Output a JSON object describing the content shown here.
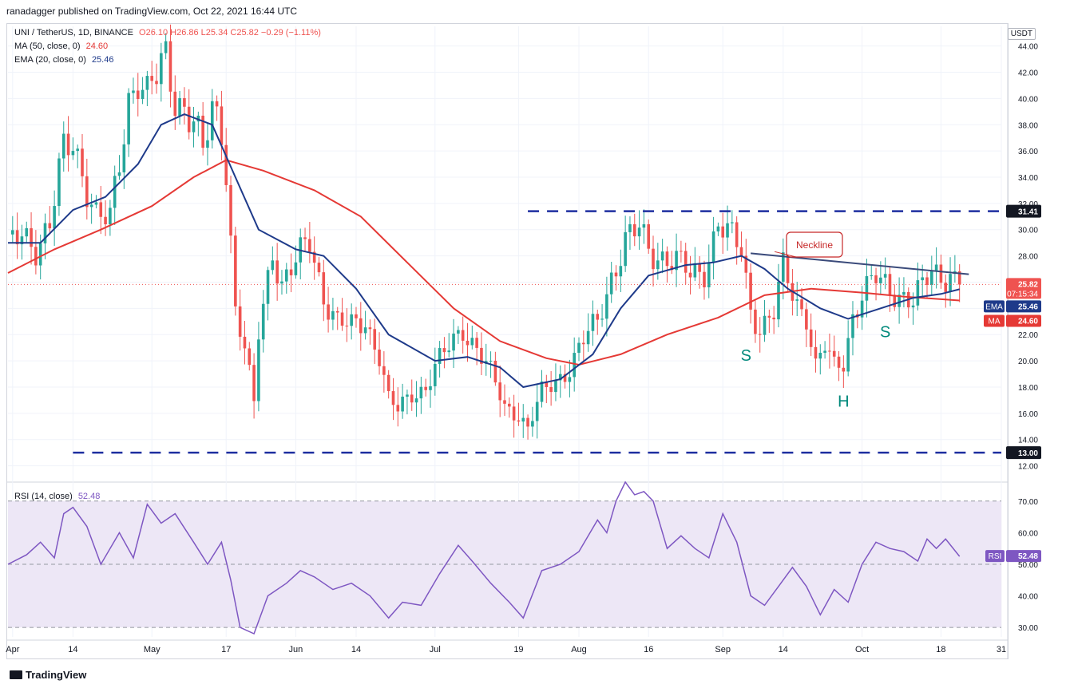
{
  "header": {
    "publisher": "ranadagger published on TradingView.com, Oct 22, 2021 16:44 UTC"
  },
  "legend": {
    "symbol": "UNI / TetherUS, 1D, BINANCE",
    "ohlc": "O26.10  H26.86  L25.34  C25.82  −0.29 (−1.11%)",
    "ma_label": "MA (50, close, 0)",
    "ma_value": "24.60",
    "ema_label": "EMA (20, close, 0)",
    "ema_value": "25.46",
    "rsi_label": "RSI (14, close)",
    "rsi_value": "52.48"
  },
  "currency": "USDT",
  "brand": "TradingView",
  "colors": {
    "up": "#26a69a",
    "down": "#ef5350",
    "ema": "#1e3a8a",
    "ma": "#e53935",
    "rsi": "#7e57c2",
    "rsi_band": "#ede7f6",
    "levels": "#1e2fa0",
    "neckline": "#3a4a7a",
    "annotation_text": "#00897b"
  },
  "chart_data": {
    "type": "candlestick",
    "price_axis": {
      "ylim": [
        11.0,
        45.5
      ],
      "ticks": [
        "12.00",
        "14.00",
        "16.00",
        "18.00",
        "20.00",
        "22.00",
        "24.00",
        "26.00",
        "28.00",
        "30.00",
        "32.00",
        "34.00",
        "36.00",
        "38.00",
        "40.00",
        "42.00",
        "44.00"
      ]
    },
    "time_axis": {
      "start": "2021-03-31",
      "end": "2021-10-31",
      "labels": [
        {
          "date": "2021-04-01",
          "text": "Apr"
        },
        {
          "date": "2021-04-14",
          "text": "14"
        },
        {
          "date": "2021-05-01",
          "text": "May"
        },
        {
          "date": "2021-05-17",
          "text": "17"
        },
        {
          "date": "2021-06-01",
          "text": "Jun"
        },
        {
          "date": "2021-06-14",
          "text": "14"
        },
        {
          "date": "2021-07-01",
          "text": "Jul"
        },
        {
          "date": "2021-07-19",
          "text": "19"
        },
        {
          "date": "2021-08-01",
          "text": "Aug"
        },
        {
          "date": "2021-08-16",
          "text": "16"
        },
        {
          "date": "2021-09-01",
          "text": "Sep"
        },
        {
          "date": "2021-09-14",
          "text": "14"
        },
        {
          "date": "2021-10-01",
          "text": "Oct"
        },
        {
          "date": "2021-10-18",
          "text": "18"
        },
        {
          "date": "2021-10-31",
          "text": "31"
        }
      ]
    },
    "close_path": [
      {
        "date": "2021-03-31",
        "value": 28.5
      },
      {
        "date": "2021-04-03",
        "value": 29.5
      },
      {
        "date": "2021-04-06",
        "value": 28.8
      },
      {
        "date": "2021-04-09",
        "value": 30.5
      },
      {
        "date": "2021-04-12",
        "value": 35.8
      },
      {
        "date": "2021-04-14",
        "value": 36.5
      },
      {
        "date": "2021-04-17",
        "value": 33.5
      },
      {
        "date": "2021-04-19",
        "value": 31.2
      },
      {
        "date": "2021-04-22",
        "value": 30.5
      },
      {
        "date": "2021-04-24",
        "value": 35.0
      },
      {
        "date": "2021-04-26",
        "value": 40.0
      },
      {
        "date": "2021-04-28",
        "value": 42.0
      },
      {
        "date": "2021-04-30",
        "value": 40.2
      },
      {
        "date": "2021-05-02",
        "value": 41.5
      },
      {
        "date": "2021-05-04",
        "value": 42.8
      },
      {
        "date": "2021-05-06",
        "value": 40.2
      },
      {
        "date": "2021-05-08",
        "value": 39.5
      },
      {
        "date": "2021-05-10",
        "value": 38.5
      },
      {
        "date": "2021-05-12",
        "value": 35.5
      },
      {
        "date": "2021-05-14",
        "value": 39.0
      },
      {
        "date": "2021-05-16",
        "value": 37.5
      },
      {
        "date": "2021-05-17",
        "value": 35.0
      },
      {
        "date": "2021-05-19",
        "value": 24.0
      },
      {
        "date": "2021-05-21",
        "value": 21.0
      },
      {
        "date": "2021-05-23",
        "value": 16.5
      },
      {
        "date": "2021-05-24",
        "value": 22.0
      },
      {
        "date": "2021-05-27",
        "value": 28.5
      },
      {
        "date": "2021-05-29",
        "value": 26.0
      },
      {
        "date": "2021-06-01",
        "value": 27.5
      },
      {
        "date": "2021-06-04",
        "value": 29.0
      },
      {
        "date": "2021-06-07",
        "value": 25.0
      },
      {
        "date": "2021-06-10",
        "value": 23.0
      },
      {
        "date": "2021-06-13",
        "value": 22.5
      },
      {
        "date": "2021-06-16",
        "value": 23.0
      },
      {
        "date": "2021-06-19",
        "value": 20.5
      },
      {
        "date": "2021-06-21",
        "value": 17.0
      },
      {
        "date": "2021-06-23",
        "value": 16.2
      },
      {
        "date": "2021-06-26",
        "value": 17.5
      },
      {
        "date": "2021-06-29",
        "value": 18.0
      },
      {
        "date": "2021-07-01",
        "value": 19.5
      },
      {
        "date": "2021-07-04",
        "value": 21.0
      },
      {
        "date": "2021-07-07",
        "value": 22.5
      },
      {
        "date": "2021-07-10",
        "value": 21.0
      },
      {
        "date": "2021-07-13",
        "value": 19.0
      },
      {
        "date": "2021-07-16",
        "value": 16.5
      },
      {
        "date": "2021-07-19",
        "value": 16.0
      },
      {
        "date": "2021-07-21",
        "value": 14.8
      },
      {
        "date": "2021-07-24",
        "value": 17.5
      },
      {
        "date": "2021-07-27",
        "value": 18.5
      },
      {
        "date": "2021-07-30",
        "value": 19.5
      },
      {
        "date": "2021-08-02",
        "value": 21.5
      },
      {
        "date": "2021-08-05",
        "value": 23.0
      },
      {
        "date": "2021-08-08",
        "value": 26.5
      },
      {
        "date": "2021-08-11",
        "value": 29.0
      },
      {
        "date": "2021-08-14",
        "value": 30.0
      },
      {
        "date": "2021-08-16",
        "value": 28.5
      },
      {
        "date": "2021-08-19",
        "value": 28.0
      },
      {
        "date": "2021-08-22",
        "value": 27.5
      },
      {
        "date": "2021-08-25",
        "value": 26.5
      },
      {
        "date": "2021-08-28",
        "value": 27.0
      },
      {
        "date": "2021-08-31",
        "value": 30.5
      },
      {
        "date": "2021-09-02",
        "value": 29.5
      },
      {
        "date": "2021-09-05",
        "value": 28.5
      },
      {
        "date": "2021-09-07",
        "value": 24.0
      },
      {
        "date": "2021-09-09",
        "value": 22.5
      },
      {
        "date": "2021-09-12",
        "value": 23.5
      },
      {
        "date": "2021-09-14",
        "value": 27.0
      },
      {
        "date": "2021-09-17",
        "value": 24.5
      },
      {
        "date": "2021-09-19",
        "value": 23.5
      },
      {
        "date": "2021-09-21",
        "value": 19.5
      },
      {
        "date": "2021-09-23",
        "value": 21.0
      },
      {
        "date": "2021-09-25",
        "value": 19.5
      },
      {
        "date": "2021-09-27",
        "value": 20.0
      },
      {
        "date": "2021-09-29",
        "value": 23.5
      },
      {
        "date": "2021-10-01",
        "value": 25.0
      },
      {
        "date": "2021-10-04",
        "value": 26.2
      },
      {
        "date": "2021-10-07",
        "value": 25.5
      },
      {
        "date": "2021-10-10",
        "value": 25.0
      },
      {
        "date": "2021-10-12",
        "value": 24.5
      },
      {
        "date": "2021-10-14",
        "value": 25.5
      },
      {
        "date": "2021-10-16",
        "value": 26.8
      },
      {
        "date": "2021-10-18",
        "value": 26.5
      },
      {
        "date": "2021-10-20",
        "value": 26.8
      },
      {
        "date": "2021-10-22",
        "value": 25.82
      }
    ],
    "ema_path": [
      {
        "date": "2021-03-31",
        "value": 29.0
      },
      {
        "date": "2021-04-07",
        "value": 29.0
      },
      {
        "date": "2021-04-14",
        "value": 31.5
      },
      {
        "date": "2021-04-21",
        "value": 32.5
      },
      {
        "date": "2021-04-28",
        "value": 35.0
      },
      {
        "date": "2021-05-03",
        "value": 38.0
      },
      {
        "date": "2021-05-08",
        "value": 38.8
      },
      {
        "date": "2021-05-14",
        "value": 38.0
      },
      {
        "date": "2021-05-19",
        "value": 34.0
      },
      {
        "date": "2021-05-24",
        "value": 30.0
      },
      {
        "date": "2021-06-01",
        "value": 28.5
      },
      {
        "date": "2021-06-07",
        "value": 28.0
      },
      {
        "date": "2021-06-14",
        "value": 25.5
      },
      {
        "date": "2021-06-21",
        "value": 22.0
      },
      {
        "date": "2021-07-01",
        "value": 20.0
      },
      {
        "date": "2021-07-08",
        "value": 20.3
      },
      {
        "date": "2021-07-15",
        "value": 19.5
      },
      {
        "date": "2021-07-20",
        "value": 18.0
      },
      {
        "date": "2021-07-28",
        "value": 18.6
      },
      {
        "date": "2021-08-04",
        "value": 20.5
      },
      {
        "date": "2021-08-10",
        "value": 24.0
      },
      {
        "date": "2021-08-16",
        "value": 26.5
      },
      {
        "date": "2021-08-24",
        "value": 27.3
      },
      {
        "date": "2021-08-30",
        "value": 27.5
      },
      {
        "date": "2021-09-05",
        "value": 28.0
      },
      {
        "date": "2021-09-10",
        "value": 27.0
      },
      {
        "date": "2021-09-15",
        "value": 25.5
      },
      {
        "date": "2021-09-22",
        "value": 24.0
      },
      {
        "date": "2021-09-28",
        "value": 23.2
      },
      {
        "date": "2021-10-05",
        "value": 24.0
      },
      {
        "date": "2021-10-12",
        "value": 24.8
      },
      {
        "date": "2021-10-18",
        "value": 25.1
      },
      {
        "date": "2021-10-22",
        "value": 25.46
      }
    ],
    "ma_path": [
      {
        "date": "2021-03-31",
        "value": 26.7
      },
      {
        "date": "2021-04-10",
        "value": 28.5
      },
      {
        "date": "2021-04-20",
        "value": 30.0
      },
      {
        "date": "2021-05-01",
        "value": 31.8
      },
      {
        "date": "2021-05-10",
        "value": 34.0
      },
      {
        "date": "2021-05-17",
        "value": 35.3
      },
      {
        "date": "2021-05-25",
        "value": 34.5
      },
      {
        "date": "2021-06-05",
        "value": 33.0
      },
      {
        "date": "2021-06-15",
        "value": 31.0
      },
      {
        "date": "2021-06-25",
        "value": 27.5
      },
      {
        "date": "2021-07-05",
        "value": 24.0
      },
      {
        "date": "2021-07-15",
        "value": 21.5
      },
      {
        "date": "2021-07-25",
        "value": 20.2
      },
      {
        "date": "2021-08-01",
        "value": 19.7
      },
      {
        "date": "2021-08-10",
        "value": 20.5
      },
      {
        "date": "2021-08-20",
        "value": 22.0
      },
      {
        "date": "2021-08-31",
        "value": 23.3
      },
      {
        "date": "2021-09-10",
        "value": 25.0
      },
      {
        "date": "2021-09-20",
        "value": 25.5
      },
      {
        "date": "2021-10-01",
        "value": 25.2
      },
      {
        "date": "2021-10-10",
        "value": 24.9
      },
      {
        "date": "2021-10-22",
        "value": 24.6
      }
    ],
    "rsi": {
      "ylim": [
        27,
        75
      ],
      "band": [
        30,
        70
      ],
      "ticks": [
        "30.00",
        "40.00",
        "50.00",
        "60.00",
        "70.00"
      ],
      "points": [
        {
          "date": "2021-03-31",
          "value": 50
        },
        {
          "date": "2021-04-04",
          "value": 53
        },
        {
          "date": "2021-04-07",
          "value": 57
        },
        {
          "date": "2021-04-10",
          "value": 52
        },
        {
          "date": "2021-04-12",
          "value": 66
        },
        {
          "date": "2021-04-14",
          "value": 68
        },
        {
          "date": "2021-04-17",
          "value": 62
        },
        {
          "date": "2021-04-20",
          "value": 50
        },
        {
          "date": "2021-04-24",
          "value": 60
        },
        {
          "date": "2021-04-27",
          "value": 52
        },
        {
          "date": "2021-04-30",
          "value": 69
        },
        {
          "date": "2021-05-03",
          "value": 63
        },
        {
          "date": "2021-05-06",
          "value": 66
        },
        {
          "date": "2021-05-10",
          "value": 57
        },
        {
          "date": "2021-05-13",
          "value": 50
        },
        {
          "date": "2021-05-16",
          "value": 57
        },
        {
          "date": "2021-05-18",
          "value": 45
        },
        {
          "date": "2021-05-20",
          "value": 30
        },
        {
          "date": "2021-05-23",
          "value": 28
        },
        {
          "date": "2021-05-26",
          "value": 40
        },
        {
          "date": "2021-05-30",
          "value": 44
        },
        {
          "date": "2021-06-02",
          "value": 48
        },
        {
          "date": "2021-06-05",
          "value": 46
        },
        {
          "date": "2021-06-09",
          "value": 42
        },
        {
          "date": "2021-06-13",
          "value": 44
        },
        {
          "date": "2021-06-17",
          "value": 40
        },
        {
          "date": "2021-06-21",
          "value": 33
        },
        {
          "date": "2021-06-24",
          "value": 38
        },
        {
          "date": "2021-06-28",
          "value": 37
        },
        {
          "date": "2021-07-02",
          "value": 47
        },
        {
          "date": "2021-07-06",
          "value": 56
        },
        {
          "date": "2021-07-09",
          "value": 51
        },
        {
          "date": "2021-07-13",
          "value": 44
        },
        {
          "date": "2021-07-17",
          "value": 38
        },
        {
          "date": "2021-07-20",
          "value": 33
        },
        {
          "date": "2021-07-24",
          "value": 48
        },
        {
          "date": "2021-07-28",
          "value": 50
        },
        {
          "date": "2021-08-01",
          "value": 54
        },
        {
          "date": "2021-08-05",
          "value": 64
        },
        {
          "date": "2021-08-07",
          "value": 60
        },
        {
          "date": "2021-08-09",
          "value": 70
        },
        {
          "date": "2021-08-11",
          "value": 76
        },
        {
          "date": "2021-08-13",
          "value": 72
        },
        {
          "date": "2021-08-15",
          "value": 73
        },
        {
          "date": "2021-08-17",
          "value": 70
        },
        {
          "date": "2021-08-20",
          "value": 55
        },
        {
          "date": "2021-08-23",
          "value": 59
        },
        {
          "date": "2021-08-26",
          "value": 55
        },
        {
          "date": "2021-08-29",
          "value": 52
        },
        {
          "date": "2021-09-01",
          "value": 66
        },
        {
          "date": "2021-09-04",
          "value": 57
        },
        {
          "date": "2021-09-07",
          "value": 40
        },
        {
          "date": "2021-09-10",
          "value": 37
        },
        {
          "date": "2021-09-13",
          "value": 43
        },
        {
          "date": "2021-09-16",
          "value": 49
        },
        {
          "date": "2021-09-19",
          "value": 43
        },
        {
          "date": "2021-09-22",
          "value": 34
        },
        {
          "date": "2021-09-25",
          "value": 42
        },
        {
          "date": "2021-09-28",
          "value": 38
        },
        {
          "date": "2021-10-01",
          "value": 50
        },
        {
          "date": "2021-10-04",
          "value": 57
        },
        {
          "date": "2021-10-07",
          "value": 55
        },
        {
          "date": "2021-10-10",
          "value": 54
        },
        {
          "date": "2021-10-13",
          "value": 51
        },
        {
          "date": "2021-10-15",
          "value": 58
        },
        {
          "date": "2021-10-17",
          "value": 55
        },
        {
          "date": "2021-10-19",
          "value": 58
        },
        {
          "date": "2021-10-22",
          "value": 52.48
        }
      ]
    },
    "levels": [
      {
        "label": "31.41",
        "value": 31.41,
        "from": "2021-07-21",
        "to": "2021-10-31"
      },
      {
        "label": "13.00",
        "value": 13.0,
        "from": "2021-04-14",
        "to": "2021-10-31"
      }
    ],
    "neckline": {
      "from": {
        "date": "2021-09-07",
        "value": 28.2
      },
      "to": {
        "date": "2021-10-24",
        "value": 26.6
      },
      "label": "Neckline"
    },
    "annotations": [
      {
        "text": "S",
        "date": "2021-09-06",
        "value": 20.0
      },
      {
        "text": "H",
        "date": "2021-09-27",
        "value": 16.5
      },
      {
        "text": "S",
        "date": "2021-10-06",
        "value": 21.8
      }
    ],
    "price_labels": [
      {
        "name": "last",
        "text": "25.82",
        "sub": "07:15:34",
        "value": 25.82
      },
      {
        "name": "ema",
        "tag": "EMA",
        "text": "25.46",
        "value": 25.46
      },
      {
        "name": "ma",
        "tag": "MA",
        "text": "24.60",
        "value": 24.6
      }
    ]
  }
}
